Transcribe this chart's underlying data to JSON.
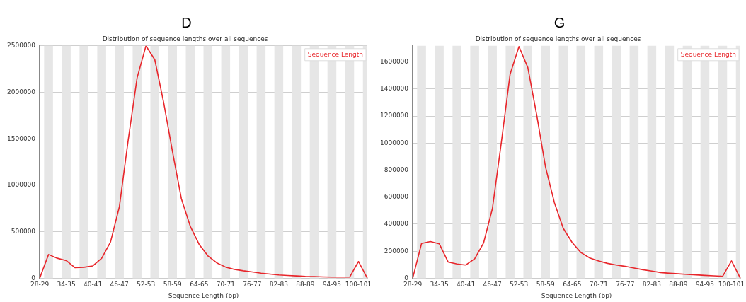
{
  "chart_data": [
    {
      "type": "line",
      "title": "D",
      "subtitle": "Distribution of sequence lengths over all sequences",
      "xlabel": "Sequence Length (bp)",
      "categories": [
        "28-29",
        null,
        null,
        "34-35",
        null,
        null,
        "40-41",
        null,
        null,
        "46-47",
        null,
        null,
        "52-53",
        null,
        null,
        "58-59",
        null,
        null,
        "64-65",
        null,
        null,
        "70-71",
        null,
        null,
        "76-77",
        null,
        null,
        "82-83",
        null,
        null,
        "88-89",
        null,
        null,
        "94-95",
        null,
        null,
        "100-101",
        null
      ],
      "series": [
        {
          "name": "Sequence Length",
          "color": "#e8262b",
          "values": [
            0,
            255000,
            215000,
            190000,
            113000,
            118000,
            133000,
            215000,
            390000,
            770000,
            1490000,
            2155000,
            2500000,
            2350000,
            1890000,
            1360000,
            855000,
            560000,
            365000,
            240000,
            165000,
            120000,
            95000,
            80000,
            68000,
            55000,
            45000,
            35000,
            30000,
            25000,
            20000,
            18000,
            15000,
            12000,
            12000,
            12000,
            180000,
            0
          ]
        }
      ],
      "ylim": [
        0,
        2500000
      ],
      "yticks": [
        0,
        500000,
        1000000,
        1500000,
        2000000,
        2500000
      ],
      "grid": "y",
      "legend": "top right",
      "marker": "none"
    },
    {
      "type": "line",
      "title": "G",
      "subtitle": "Distribution of sequence lengths over all sequences",
      "xlabel": "Sequence Length (bp)",
      "categories": [
        "28-29",
        null,
        null,
        "34-35",
        null,
        null,
        "40-41",
        null,
        null,
        "46-47",
        null,
        null,
        "52-53",
        null,
        null,
        "58-59",
        null,
        null,
        "64-65",
        null,
        null,
        "70-71",
        null,
        null,
        "76-77",
        null,
        null,
        "82-83",
        null,
        null,
        "88-89",
        null,
        null,
        "94-95",
        null,
        null,
        "100-101",
        null
      ],
      "series": [
        {
          "name": "Sequence Length",
          "color": "#e8262b",
          "values": [
            0,
            257000,
            272000,
            255000,
            120000,
            105000,
            98000,
            144000,
            260000,
            515000,
            1000000,
            1510000,
            1715000,
            1560000,
            1210000,
            823000,
            560000,
            370000,
            265000,
            190000,
            150000,
            128000,
            110000,
            98000,
            88000,
            75000,
            63000,
            53000,
            42000,
            37000,
            33000,
            28000,
            25000,
            21000,
            18000,
            14000,
            128000,
            0
          ]
        }
      ],
      "ylim": [
        0,
        1720000
      ],
      "yticks": [
        0,
        200000,
        400000,
        600000,
        800000,
        1000000,
        1200000,
        1400000,
        1600000
      ],
      "grid": "y",
      "legend": "top right",
      "marker": "none"
    }
  ]
}
